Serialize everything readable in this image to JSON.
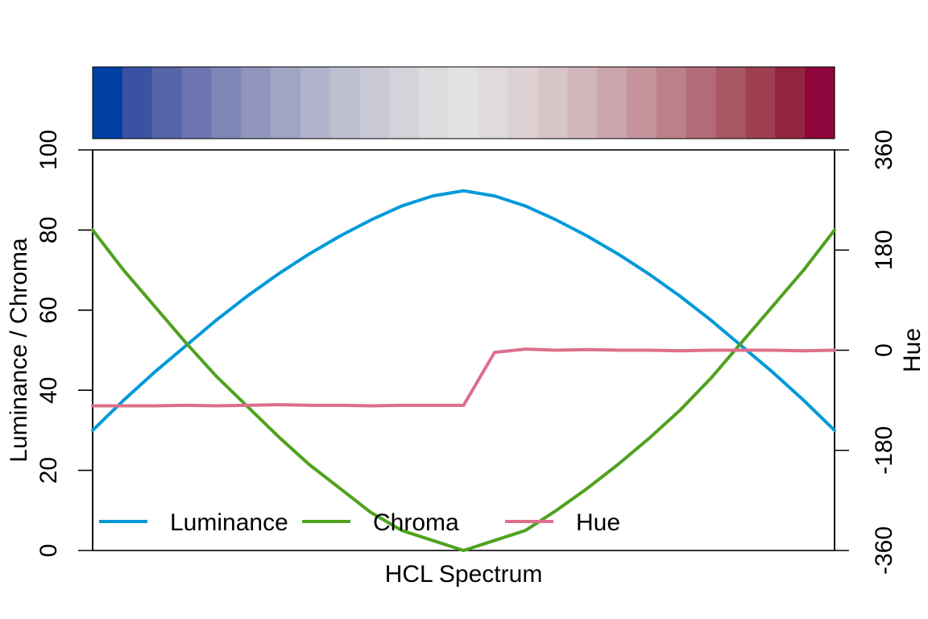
{
  "chart_data": {
    "type": "line",
    "title": "",
    "xlabel": "HCL Spectrum",
    "ylabel_left": "Luminance / Chroma",
    "ylabel_right": "Hue",
    "ylim_left": [
      0,
      100
    ],
    "ylim_right": [
      -360,
      360
    ],
    "yticks_left": [
      "0",
      "20",
      "40",
      "60",
      "80",
      "100"
    ],
    "yticks_right": [
      "-360",
      "-180",
      "0",
      "180",
      "360"
    ],
    "grid": false,
    "legend_position": "bottom",
    "n": 25,
    "swatches": [
      "#023FA5",
      "#3A52A4",
      "#5664A8",
      "#6C75AF",
      "#7F86B5",
      "#9196BD",
      "#A1A5C4",
      "#B0B3CB",
      "#BDBFD1",
      "#C9CAD6",
      "#D3D4DA",
      "#DCDDDF",
      "#E2E2E2",
      "#E0DADB",
      "#DDD1D3",
      "#D8C5C8",
      "#D2B6BB",
      "#CBA5AC",
      "#C4939B",
      "#BC808A",
      "#B36B78",
      "#A95665",
      "#9E3F52",
      "#92253E",
      "#8E063B"
    ],
    "series": [
      {
        "name": "Luminance",
        "axis": "left",
        "color": "#0099D9",
        "values": [
          30,
          37.5,
          44.5,
          51,
          57.5,
          63.5,
          69,
          74,
          78.5,
          82.5,
          86,
          88.5,
          89.8,
          88.5,
          86,
          82.5,
          78.5,
          74,
          69,
          63.5,
          57.5,
          51,
          44.5,
          37.5,
          30
        ]
      },
      {
        "name": "Chroma",
        "axis": "left",
        "color": "#4FA21E",
        "values": [
          80,
          70,
          61,
          52,
          43.5,
          36,
          28.5,
          21.5,
          15.5,
          9.5,
          5,
          2.5,
          0,
          2.5,
          5,
          10,
          15.5,
          21.5,
          28,
          35,
          43,
          52,
          61,
          70,
          80
        ]
      },
      {
        "name": "Hue",
        "axis": "right",
        "color": "#DD6F8C",
        "values": [
          -100,
          -100,
          -100,
          -99,
          -100,
          -99,
          -98,
          -99,
          -99,
          -100,
          -99,
          -99,
          -99,
          -4,
          2,
          0,
          1,
          0,
          0,
          -1,
          0,
          0,
          0,
          -1,
          0
        ]
      }
    ]
  }
}
